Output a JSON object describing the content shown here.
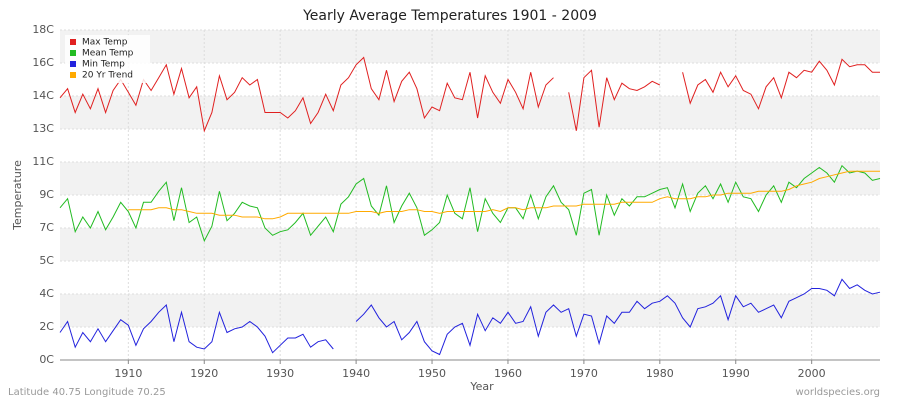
{
  "chart_data": {
    "type": "line",
    "title": "Yearly Average Temperatures 1901 - 2009",
    "x_label": "Year",
    "y_label": "Temperature",
    "footer_left": "Latitude 40.75 Longitude 70.25",
    "footer_right": "worldspecies.org",
    "legend": "upper left",
    "grid": true,
    "x": [
      1901,
      1902,
      1903,
      1904,
      1905,
      1906,
      1907,
      1908,
      1909,
      1910,
      1911,
      1912,
      1913,
      1914,
      1915,
      1916,
      1917,
      1918,
      1919,
      1920,
      1921,
      1922,
      1923,
      1924,
      1925,
      1926,
      1927,
      1928,
      1929,
      1930,
      1931,
      1932,
      1933,
      1934,
      1935,
      1936,
      1937,
      1938,
      1939,
      1940,
      1941,
      1942,
      1943,
      1944,
      1945,
      1946,
      1947,
      1948,
      1949,
      1950,
      1951,
      1952,
      1953,
      1954,
      1955,
      1956,
      1957,
      1958,
      1959,
      1960,
      1961,
      1962,
      1963,
      1964,
      1965,
      1966,
      1967,
      1968,
      1969,
      1970,
      1971,
      1972,
      1973,
      1974,
      1975,
      1976,
      1977,
      1978,
      1979,
      1980,
      1981,
      1982,
      1983,
      1984,
      1985,
      1986,
      1987,
      1988,
      1989,
      1990,
      1991,
      1992,
      1993,
      1994,
      1995,
      1996,
      1997,
      1998,
      1999,
      2000,
      2001,
      2002,
      2003,
      2004,
      2005,
      2006,
      2007,
      2008,
      2009
    ],
    "xlim": [
      1901,
      2009
    ],
    "xticks": [
      1910,
      1920,
      1930,
      1940,
      1950,
      1960,
      1970,
      1980,
      1990,
      2000
    ],
    "ylim": [
      0,
      18
    ],
    "yticks": [
      {
        "value": 0,
        "label": "0C"
      },
      {
        "value": 1.8,
        "label": "2C"
      },
      {
        "value": 3.6,
        "label": "4C"
      },
      {
        "value": 5.4,
        "label": "5C"
      },
      {
        "value": 7.2,
        "label": "7C"
      },
      {
        "value": 9,
        "label": "9C"
      },
      {
        "value": 10.8,
        "label": "11C"
      },
      {
        "value": 12.6,
        "label": "13C"
      },
      {
        "value": 14.4,
        "label": "14C"
      },
      {
        "value": 16.2,
        "label": "16C"
      },
      {
        "value": 18,
        "label": "18C"
      }
    ],
    "series": [
      {
        "name": "Max Temp",
        "color": "#e02020",
        "values": [
          14.3,
          14.8,
          13.5,
          14.5,
          13.7,
          14.8,
          13.5,
          14.7,
          15.3,
          14.6,
          13.9,
          15.3,
          14.7,
          15.4,
          16.1,
          14.5,
          15.9,
          14.3,
          14.9,
          12.5,
          13.5,
          15.5,
          14.2,
          14.6,
          15.4,
          15.0,
          15.3,
          13.5,
          13.5,
          13.5,
          13.2,
          13.6,
          14.3,
          12.9,
          13.5,
          14.5,
          13.6,
          15.0,
          15.4,
          16.1,
          16.5,
          14.8,
          14.2,
          15.8,
          14.1,
          15.2,
          15.7,
          14.8,
          13.2,
          13.8,
          13.6,
          15.1,
          14.3,
          14.2,
          15.7,
          13.2,
          15.5,
          14.6,
          14.0,
          15.3,
          14.6,
          13.7,
          15.7,
          13.8,
          15.0,
          15.4,
          null,
          14.6,
          12.5,
          15.4,
          15.8,
          12.7,
          15.4,
          14.2,
          15.1,
          14.8,
          14.7,
          14.9,
          15.2,
          15.0,
          null,
          null,
          15.7,
          14.0,
          15.0,
          15.3,
          14.6,
          15.7,
          14.9,
          15.5,
          14.7,
          14.5,
          13.7,
          14.9,
          15.4,
          14.3,
          15.7,
          15.4,
          15.8,
          15.7,
          16.3,
          15.8,
          15.0,
          16.4,
          16.0,
          16.1,
          16.1,
          15.7,
          15.7
        ]
      },
      {
        "name": "Mean Temp",
        "color": "#22bb22",
        "values": [
          8.3,
          8.8,
          7.0,
          7.8,
          7.2,
          8.1,
          7.1,
          7.8,
          8.6,
          8.1,
          7.2,
          8.6,
          8.6,
          9.2,
          9.7,
          7.6,
          9.4,
          7.5,
          7.8,
          6.5,
          7.3,
          9.2,
          7.6,
          8.0,
          8.6,
          8.4,
          8.3,
          7.2,
          6.8,
          7.0,
          7.1,
          7.5,
          8.0,
          6.8,
          7.3,
          7.8,
          7.0,
          8.5,
          8.9,
          9.6,
          9.9,
          8.4,
          7.9,
          9.5,
          7.5,
          8.4,
          9.1,
          8.3,
          6.8,
          7.1,
          7.5,
          9.0,
          8.0,
          7.7,
          9.4,
          7.0,
          8.8,
          8.0,
          7.5,
          8.3,
          8.3,
          7.7,
          9.0,
          7.7,
          8.9,
          9.5,
          8.6,
          8.2,
          6.8,
          9.1,
          9.3,
          6.8,
          9.0,
          7.9,
          8.8,
          8.4,
          8.9,
          8.9,
          9.1,
          9.3,
          9.4,
          8.3,
          9.6,
          8.1,
          9.1,
          9.5,
          8.8,
          9.6,
          8.6,
          9.7,
          8.9,
          8.8,
          8.1,
          9.0,
          9.5,
          8.6,
          9.7,
          9.4,
          9.9,
          10.2,
          10.5,
          10.2,
          9.7,
          10.6,
          10.2,
          10.3,
          10.2,
          9.8,
          9.9
        ]
      },
      {
        "name": "Min Temp",
        "color": "#2222dd",
        "values": [
          1.5,
          2.1,
          0.7,
          1.5,
          1.0,
          1.7,
          1.0,
          1.6,
          2.2,
          1.9,
          0.8,
          1.7,
          2.1,
          2.6,
          3.0,
          1.0,
          2.6,
          1.0,
          0.7,
          0.6,
          1.0,
          2.6,
          1.5,
          1.7,
          1.8,
          2.1,
          1.8,
          1.3,
          0.4,
          0.8,
          1.2,
          1.2,
          1.4,
          0.7,
          1.0,
          1.1,
          0.6,
          null,
          null,
          2.1,
          2.5,
          3.0,
          2.3,
          1.8,
          2.1,
          1.1,
          1.5,
          2.1,
          1.0,
          0.5,
          0.3,
          1.4,
          1.8,
          2.0,
          0.8,
          2.5,
          1.6,
          2.3,
          2.0,
          2.6,
          2.0,
          2.1,
          2.9,
          1.3,
          2.6,
          3.0,
          2.6,
          2.8,
          1.3,
          2.5,
          2.4,
          0.9,
          2.4,
          2.0,
          2.6,
          2.6,
          3.2,
          2.8,
          3.1,
          3.2,
          3.5,
          3.1,
          2.3,
          1.8,
          2.8,
          2.9,
          3.1,
          3.5,
          2.2,
          3.5,
          2.9,
          3.1,
          2.6,
          2.8,
          3.0,
          2.3,
          3.2,
          3.4,
          3.6,
          3.9,
          3.9,
          3.8,
          3.5,
          4.4,
          3.9,
          4.1,
          3.8,
          3.6,
          3.7
        ]
      },
      {
        "name": "20 Yr Trend",
        "color": "#ffaa00",
        "values": [
          null,
          null,
          null,
          null,
          null,
          null,
          null,
          null,
          null,
          8.2,
          8.2,
          8.2,
          8.2,
          8.3,
          8.3,
          8.2,
          8.2,
          8.1,
          8.0,
          8.0,
          8.0,
          7.9,
          7.9,
          7.9,
          7.8,
          7.8,
          7.8,
          7.7,
          7.7,
          7.8,
          8.0,
          8.0,
          8.0,
          8.0,
          8.0,
          8.0,
          8.0,
          8.0,
          8.0,
          8.1,
          8.1,
          8.1,
          8.0,
          8.1,
          8.1,
          8.1,
          8.2,
          8.2,
          8.1,
          8.1,
          8.0,
          8.1,
          8.1,
          8.1,
          8.1,
          8.1,
          8.1,
          8.2,
          8.1,
          8.3,
          8.3,
          8.2,
          8.3,
          8.3,
          8.3,
          8.4,
          8.4,
          8.4,
          8.4,
          8.5,
          8.5,
          8.5,
          8.5,
          8.5,
          8.6,
          8.6,
          8.6,
          8.6,
          8.6,
          8.8,
          8.9,
          8.8,
          8.8,
          8.8,
          8.9,
          8.9,
          9.0,
          9.0,
          9.1,
          9.1,
          9.1,
          9.1,
          9.2,
          9.2,
          9.2,
          9.2,
          9.3,
          9.5,
          9.6,
          9.7,
          9.9,
          10.0,
          10.1,
          10.2,
          10.3,
          10.3,
          10.3,
          10.3,
          10.3
        ]
      }
    ]
  }
}
